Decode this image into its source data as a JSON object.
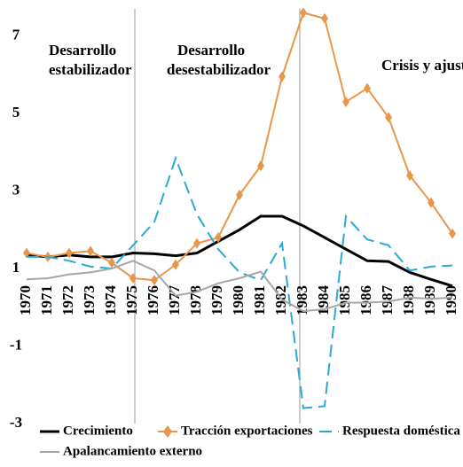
{
  "chart_data": {
    "type": "line",
    "categories": [
      "1970",
      "1971",
      "1972",
      "1973",
      "1974",
      "1975",
      "1976",
      "1977",
      "1978",
      "1979",
      "1980",
      "1981",
      "1982",
      "1983",
      "1984",
      "1985",
      "1986",
      "1987",
      "1988",
      "1989",
      "1990"
    ],
    "series": [
      {
        "name": "Crecimiento",
        "color": "#000000",
        "dash": "solid",
        "width": 3,
        "values": [
          1.35,
          1.3,
          1.35,
          1.3,
          1.3,
          1.4,
          1.38,
          1.33,
          1.4,
          1.7,
          2.0,
          2.35,
          2.35,
          2.1,
          1.8,
          1.5,
          1.2,
          1.18,
          0.9,
          0.72,
          0.55
        ]
      },
      {
        "name": "Tracción exportaciones",
        "color": "#e8964a",
        "dash": "solid",
        "width": 2,
        "marker": "diamond",
        "values": [
          1.4,
          1.3,
          1.4,
          1.45,
          1.15,
          0.75,
          0.7,
          1.1,
          1.65,
          1.8,
          2.9,
          3.65,
          5.95,
          7.6,
          7.45,
          5.3,
          5.65,
          4.9,
          3.4,
          2.7,
          1.9
        ]
      },
      {
        "name": "Respuesta doméstica",
        "color": "#2aa9d6",
        "dash": "dashed",
        "width": 2,
        "values": [
          1.3,
          1.3,
          1.2,
          1.05,
          1.0,
          1.6,
          2.2,
          3.85,
          2.4,
          1.5,
          0.9,
          0.7,
          1.65,
          -2.6,
          -2.55,
          2.35,
          1.75,
          1.6,
          0.95,
          1.05,
          1.08
        ]
      },
      {
        "name": "Apalancamiento externo",
        "color": "#a6a6a6",
        "dash": "solid",
        "width": 2,
        "values": [
          0.72,
          0.75,
          0.85,
          0.9,
          1.0,
          1.2,
          0.95,
          0.3,
          0.4,
          0.62,
          0.75,
          0.92,
          0.2,
          -0.1,
          -0.05,
          0.12,
          0.12,
          0.15,
          0.25,
          0.22,
          0.25
        ]
      }
    ],
    "ylim": [
      -3,
      7.7
    ],
    "yticks": [
      -3,
      -1,
      1,
      3,
      5,
      7
    ],
    "annotations": [
      {
        "lines": [
          "Desarrollo",
          "estabilizador"
        ]
      },
      {
        "lines": [
          "Desarrollo",
          "desestabilizador"
        ]
      },
      {
        "lines": [
          "Crisis y ajuste"
        ]
      }
    ],
    "legend": "bottom"
  }
}
